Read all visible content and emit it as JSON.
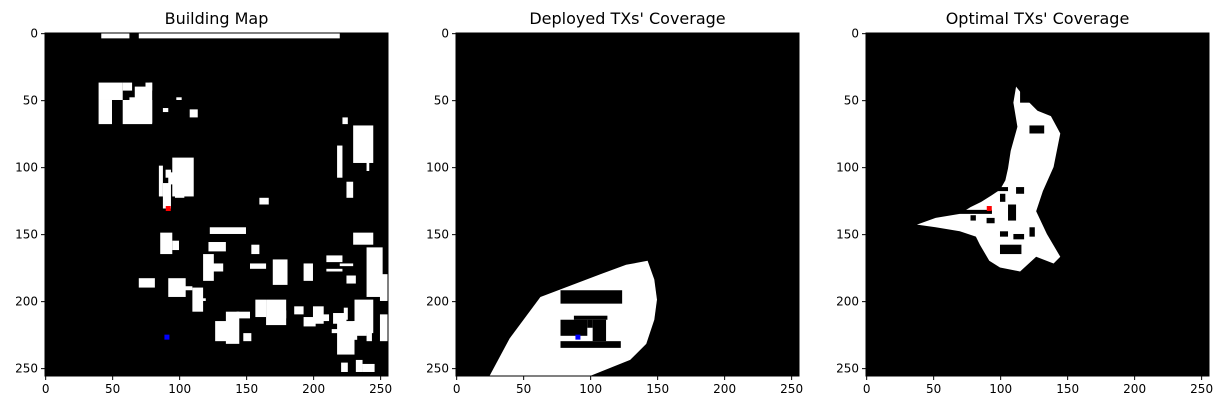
{
  "chart_data": [
    {
      "type": "heatmap",
      "title": "Building Map",
      "colormap": "binary (black = 0, white = 1)",
      "xlim": [
        0,
        255
      ],
      "ylim": [
        255,
        0
      ],
      "xticks": [
        0,
        50,
        100,
        150,
        200,
        250
      ],
      "yticks": [
        0,
        50,
        100,
        150,
        200,
        250
      ],
      "white_regions": [
        [
          42,
          63,
          0,
          4
        ],
        [
          70,
          220,
          0,
          4
        ],
        [
          40,
          58,
          37,
          50
        ],
        [
          58,
          65,
          37,
          43
        ],
        [
          75,
          80,
          37,
          43
        ],
        [
          40,
          50,
          50,
          68
        ],
        [
          58,
          80,
          50,
          68
        ],
        [
          78,
          80,
          37,
          67
        ],
        [
          67,
          79,
          40,
          67
        ],
        [
          63,
          70,
          48,
          52
        ],
        [
          63,
          70,
          60,
          67
        ],
        [
          88,
          94,
          52,
          52
        ],
        [
          88,
          92,
          56,
          59
        ],
        [
          85,
          88,
          99,
          122
        ],
        [
          88,
          94,
          112,
          131
        ],
        [
          98,
          102,
          48,
          50
        ],
        [
          108,
          114,
          57,
          63
        ],
        [
          95,
          111,
          93,
          122
        ],
        [
          92,
          97,
          104,
          113
        ],
        [
          90,
          94,
          102,
          108
        ],
        [
          97,
          104,
          116,
          123
        ],
        [
          86,
          95,
          149,
          165
        ],
        [
          95,
          100,
          155,
          162
        ],
        [
          123,
          150,
          145,
          150
        ],
        [
          122,
          135,
          156,
          163
        ],
        [
          160,
          167,
          123,
          128
        ],
        [
          154,
          160,
          158,
          165
        ],
        [
          153,
          165,
          172,
          176
        ],
        [
          170,
          181,
          169,
          188
        ],
        [
          193,
          200,
          172,
          185
        ],
        [
          210,
          222,
          166,
          171
        ],
        [
          220,
          230,
          172,
          174
        ],
        [
          225,
          232,
          181,
          187
        ],
        [
          225,
          230,
          111,
          123
        ],
        [
          240,
          242,
          93,
          103
        ],
        [
          210,
          222,
          176,
          178
        ],
        [
          218,
          222,
          84,
          108
        ],
        [
          222,
          226,
          63,
          68
        ],
        [
          230,
          245,
          69,
          97
        ],
        [
          230,
          245,
          149,
          158
        ],
        [
          240,
          252,
          160,
          197
        ],
        [
          250,
          256,
          180,
          200
        ],
        [
          218,
          231,
          215,
          240
        ],
        [
          230,
          240,
          215,
          226
        ],
        [
          231,
          245,
          199,
          224
        ],
        [
          250,
          256,
          210,
          230
        ],
        [
          70,
          82,
          183,
          190
        ],
        [
          92,
          105,
          183,
          197
        ],
        [
          103,
          110,
          189,
          192
        ],
        [
          110,
          118,
          190,
          208
        ],
        [
          115,
          120,
          198,
          200
        ],
        [
          118,
          126,
          165,
          185
        ],
        [
          123,
          133,
          172,
          178
        ],
        [
          127,
          136,
          215,
          230
        ],
        [
          135,
          145,
          208,
          232
        ],
        [
          143,
          153,
          208,
          213
        ],
        [
          148,
          154,
          224,
          230
        ],
        [
          157,
          165,
          199,
          212
        ],
        [
          165,
          180,
          199,
          218
        ],
        [
          177,
          180,
          207,
          213
        ],
        [
          186,
          193,
          204,
          210
        ],
        [
          193,
          202,
          212,
          219
        ],
        [
          200,
          208,
          204,
          217
        ],
        [
          205,
          212,
          210,
          215
        ],
        [
          215,
          225,
          209,
          217
        ],
        [
          214,
          220,
          221,
          224
        ],
        [
          227,
          233,
          222,
          229
        ],
        [
          240,
          244,
          220,
          230
        ],
        [
          232,
          237,
          244,
          253
        ],
        [
          237,
          246,
          247,
          253
        ],
        [
          221,
          226,
          246,
          253
        ],
        [
          223,
          226,
          205,
          214
        ]
      ],
      "markers": [
        {
          "color": "#ff0000",
          "x": 92,
          "y": 131
        },
        {
          "color": "#0000ff",
          "x": 91,
          "y": 227
        }
      ]
    },
    {
      "type": "heatmap",
      "title": "Deployed TXs' Coverage",
      "colormap": "binary (black = 0, white = 1)",
      "xlim": [
        0,
        255
      ],
      "ylim": [
        255,
        0
      ],
      "xticks": [
        0,
        50,
        100,
        150,
        200,
        250
      ],
      "yticks": [
        0,
        50,
        100,
        150,
        200,
        250
      ],
      "coverage_polygon": [
        [
          25,
          256
        ],
        [
          40,
          228
        ],
        [
          63,
          197
        ],
        [
          108,
          180
        ],
        [
          127,
          173
        ],
        [
          143,
          170
        ],
        [
          148,
          184
        ],
        [
          150,
          199
        ],
        [
          148,
          214
        ],
        [
          142,
          232
        ],
        [
          130,
          244
        ],
        [
          100,
          256
        ]
      ],
      "black_regions": [
        [
          78,
          124,
          192,
          202
        ],
        [
          88,
          113,
          211,
          214
        ],
        [
          78,
          98,
          214,
          226
        ],
        [
          98,
          102,
          214,
          220
        ],
        [
          102,
          112,
          214,
          230
        ],
        [
          78,
          123,
          230,
          235
        ]
      ],
      "markers": [
        {
          "color": "#0000ff",
          "x": 91,
          "y": 227
        }
      ]
    },
    {
      "type": "heatmap",
      "title": "Optimal TXs' Coverage",
      "colormap": "binary (black = 0, white = 1)",
      "xlim": [
        0,
        255
      ],
      "ylim": [
        255,
        0
      ],
      "xticks": [
        0,
        50,
        100,
        150,
        200,
        250
      ],
      "yticks": [
        0,
        50,
        100,
        150,
        200,
        250
      ],
      "coverage_polygon": [
        [
          112,
          40
        ],
        [
          120,
          50
        ],
        [
          128,
          58
        ],
        [
          138,
          62
        ],
        [
          145,
          75
        ],
        [
          140,
          100
        ],
        [
          132,
          118
        ],
        [
          127,
          133
        ],
        [
          135,
          150
        ],
        [
          145,
          167
        ],
        [
          140,
          172
        ],
        [
          127,
          167
        ],
        [
          115,
          178
        ],
        [
          100,
          175
        ],
        [
          92,
          170
        ],
        [
          85,
          158
        ],
        [
          82,
          152
        ],
        [
          70,
          148
        ],
        [
          52,
          145
        ],
        [
          38,
          143
        ],
        [
          52,
          138
        ],
        [
          70,
          135
        ],
        [
          78,
          130
        ],
        [
          86,
          126
        ],
        [
          94,
          121
        ],
        [
          100,
          117
        ],
        [
          104,
          110
        ],
        [
          106,
          101
        ],
        [
          108,
          88
        ],
        [
          113,
          70
        ],
        [
          110,
          52
        ]
      ],
      "black_regions": [
        [
          115,
          124,
          40,
          52
        ],
        [
          122,
          133,
          69,
          75
        ],
        [
          92,
          106,
          115,
          118
        ],
        [
          112,
          118,
          115,
          120
        ],
        [
          100,
          104,
          120,
          126
        ],
        [
          106,
          112,
          128,
          140
        ],
        [
          70,
          94,
          132,
          135
        ],
        [
          78,
          82,
          136,
          140
        ],
        [
          90,
          96,
          138,
          142
        ],
        [
          100,
          106,
          148,
          152
        ],
        [
          110,
          118,
          150,
          154
        ],
        [
          122,
          126,
          145,
          152
        ],
        [
          100,
          116,
          158,
          165
        ]
      ],
      "markers": [
        {
          "color": "#ff0000",
          "x": 92,
          "y": 131
        }
      ]
    }
  ]
}
